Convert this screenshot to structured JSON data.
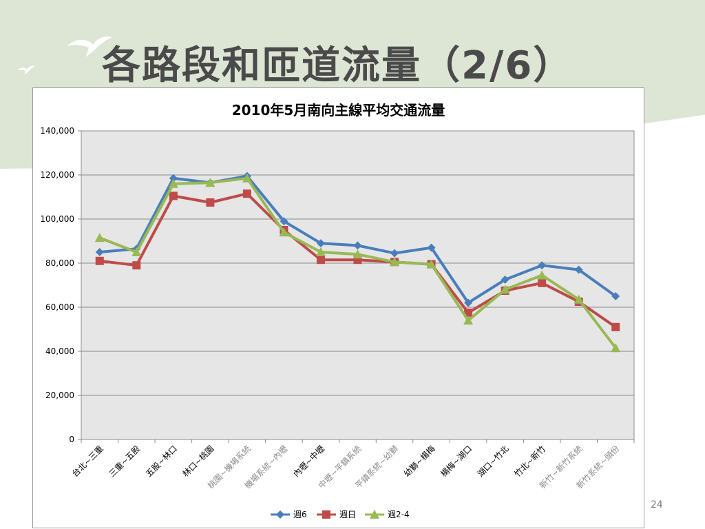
{
  "slide": {
    "title": "各路段和匝道流量（2/6）",
    "page_number": "24"
  },
  "colors": {
    "background_band": "#dde5d4",
    "plot_area": "#e6e6e6",
    "series_6": "#4a7ebb",
    "series_sun": "#be4b48",
    "series_24": "#98b954"
  },
  "chart_data": {
    "type": "line",
    "title": "2010年5月南向主線平均交通流量",
    "xlabel": "",
    "ylabel": "",
    "ylim": [
      0,
      140000
    ],
    "yticks": [
      "0",
      "20,000",
      "40,000",
      "60,000",
      "80,000",
      "100,000",
      "120,000",
      "140,000"
    ],
    "grid": true,
    "legend_position": "bottom",
    "categories": [
      "台北~三重",
      "三重~五股",
      "五股~林口",
      "林口~桃園",
      "桃園~機場系統",
      "機場系統~內壢",
      "內壢~中壢",
      "中壢~平鎮系統",
      "平鎮系統~幼獅",
      "幼獅~楊梅",
      "楊梅~湖口",
      "湖口~竹北",
      "竹北~新竹",
      "新竹~新竹系統",
      "新竹系統~頭份"
    ],
    "series": [
      {
        "name": "週6",
        "marker": "diamond",
        "values": [
          85000,
          86500,
          118500,
          116500,
          119500,
          99000,
          89000,
          88000,
          84500,
          87000,
          62000,
          72500,
          79000,
          77000,
          65000
        ]
      },
      {
        "name": "週日",
        "marker": "square",
        "values": [
          81000,
          79000,
          110500,
          107500,
          111500,
          95000,
          81500,
          81500,
          80500,
          79500,
          57500,
          67500,
          71000,
          62500,
          51000
        ]
      },
      {
        "name": "週2-4",
        "marker": "triangle",
        "values": [
          91500,
          85000,
          116000,
          116500,
          118500,
          94000,
          85000,
          84000,
          80500,
          79500,
          54000,
          68000,
          74500,
          63500,
          41500
        ]
      }
    ]
  }
}
